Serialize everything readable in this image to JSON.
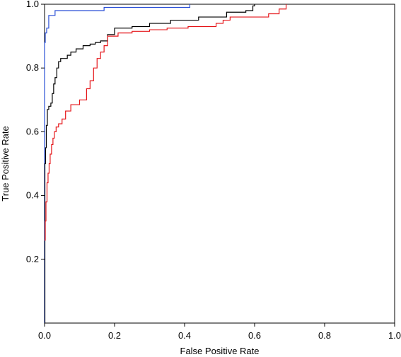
{
  "chart_data": {
    "type": "line",
    "title": "",
    "xlabel": "False Positive Rate",
    "ylabel": "True Positive Rate",
    "xlim": [
      0,
      1
    ],
    "ylim": [
      0,
      1
    ],
    "x_ticks": [
      0.0,
      0.2,
      0.4,
      0.6,
      0.8,
      1.0
    ],
    "x_tick_labels": [
      "0.0",
      "0.2",
      "0.4",
      "0.6",
      "0.8",
      "1.0"
    ],
    "y_ticks": [
      0.2,
      0.4,
      0.6,
      0.8,
      1.0
    ],
    "y_tick_labels": [
      "0.2",
      "0.4",
      "0.6",
      "0.8",
      "1.0"
    ],
    "grid": false,
    "legend": "none",
    "series": [
      {
        "color": "#2a4fd6",
        "x": [
          0.0,
          0.0,
          0.002,
          0.002,
          0.006,
          0.006,
          0.012,
          0.012,
          0.03,
          0.03,
          0.17,
          0.17,
          0.415,
          0.415
        ],
        "y": [
          0.0,
          0.88,
          0.88,
          0.91,
          0.91,
          0.925,
          0.925,
          0.965,
          0.965,
          0.98,
          0.98,
          0.99,
          0.99,
          1.0
        ]
      },
      {
        "color": "#000000",
        "x": [
          0.0,
          0.001,
          0.003,
          0.005,
          0.008,
          0.012,
          0.018,
          0.022,
          0.026,
          0.03,
          0.035,
          0.04,
          0.046,
          0.052,
          0.065,
          0.075,
          0.09,
          0.11,
          0.13,
          0.145,
          0.16,
          0.18,
          0.2,
          0.25,
          0.3,
          0.36,
          0.44,
          0.52,
          0.575,
          0.595,
          0.6
        ],
        "y": [
          0.0,
          0.5,
          0.55,
          0.62,
          0.67,
          0.68,
          0.69,
          0.72,
          0.75,
          0.77,
          0.8,
          0.82,
          0.83,
          0.83,
          0.84,
          0.85,
          0.86,
          0.87,
          0.875,
          0.88,
          0.885,
          0.905,
          0.925,
          0.93,
          0.94,
          0.95,
          0.96,
          0.975,
          0.98,
          0.995,
          1.0
        ]
      },
      {
        "color": "#e5161a",
        "x": [
          0.0,
          0.002,
          0.004,
          0.007,
          0.01,
          0.013,
          0.016,
          0.02,
          0.024,
          0.028,
          0.033,
          0.04,
          0.05,
          0.06,
          0.075,
          0.1,
          0.12,
          0.13,
          0.14,
          0.15,
          0.16,
          0.17,
          0.18,
          0.21,
          0.25,
          0.3,
          0.35,
          0.41,
          0.44,
          0.49,
          0.51,
          0.53,
          0.55,
          0.64,
          0.67,
          0.69
        ],
        "y": [
          0.26,
          0.32,
          0.38,
          0.44,
          0.47,
          0.5,
          0.53,
          0.56,
          0.58,
          0.6,
          0.615,
          0.625,
          0.64,
          0.665,
          0.685,
          0.7,
          0.735,
          0.76,
          0.8,
          0.83,
          0.85,
          0.87,
          0.9,
          0.91,
          0.915,
          0.92,
          0.925,
          0.93,
          0.93,
          0.94,
          0.95,
          0.96,
          0.96,
          0.97,
          0.985,
          1.0
        ]
      }
    ]
  }
}
